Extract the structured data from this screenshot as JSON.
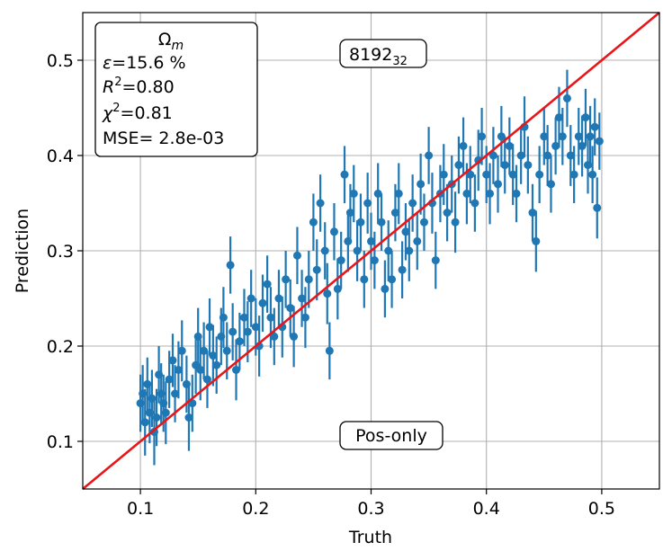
{
  "chart_data": {
    "type": "scatter",
    "title": "",
    "xlabel": "Truth",
    "ylabel": "Prediction",
    "xlim": [
      0.05,
      0.55
    ],
    "ylim": [
      0.05,
      0.55
    ],
    "grid": true,
    "x_ticks": [
      0.1,
      0.2,
      0.3,
      0.4,
      0.5
    ],
    "x_tick_labels": [
      "0.1",
      "0.2",
      "0.3",
      "0.4",
      "0.5"
    ],
    "y_ticks": [
      0.1,
      0.2,
      0.3,
      0.4,
      0.5
    ],
    "y_tick_labels": [
      "0.1",
      "0.2",
      "0.3",
      "0.4",
      "0.5"
    ],
    "series_color": "#1f77b4",
    "reference_line": {
      "name": "y = x",
      "color": "#e8161a",
      "from": [
        0.05,
        0.05
      ],
      "to": [
        0.55,
        0.55
      ]
    },
    "stats_box": {
      "parameter": "Ωm",
      "parameter_symbol": "Ω",
      "parameter_subscript": "m",
      "lines": [
        {
          "symbol": "ε",
          "sup": "",
          "text": "=15.6 %"
        },
        {
          "symbol": "R",
          "sup": "2",
          "text": "=0.80"
        },
        {
          "symbol": "χ",
          "sup": "2",
          "text": "=0.81"
        },
        {
          "symbol": "",
          "sup": "",
          "text": "MSE= 2.8e-03"
        }
      ]
    },
    "top_label": {
      "main": "8192",
      "subscript": "32"
    },
    "bottom_label": "Pos-only",
    "points": [
      {
        "x": 0.1,
        "y": 0.14,
        "err": 0.03
      },
      {
        "x": 0.102,
        "y": 0.15,
        "err": 0.03
      },
      {
        "x": 0.104,
        "y": 0.12,
        "err": 0.035
      },
      {
        "x": 0.106,
        "y": 0.16,
        "err": 0.028
      },
      {
        "x": 0.108,
        "y": 0.13,
        "err": 0.032
      },
      {
        "x": 0.11,
        "y": 0.145,
        "err": 0.03
      },
      {
        "x": 0.112,
        "y": 0.11,
        "err": 0.035
      },
      {
        "x": 0.114,
        "y": 0.125,
        "err": 0.03
      },
      {
        "x": 0.116,
        "y": 0.17,
        "err": 0.03
      },
      {
        "x": 0.118,
        "y": 0.15,
        "err": 0.032
      },
      {
        "x": 0.12,
        "y": 0.14,
        "err": 0.03
      },
      {
        "x": 0.122,
        "y": 0.13,
        "err": 0.033
      },
      {
        "x": 0.125,
        "y": 0.165,
        "err": 0.03
      },
      {
        "x": 0.128,
        "y": 0.185,
        "err": 0.028
      },
      {
        "x": 0.13,
        "y": 0.15,
        "err": 0.03
      },
      {
        "x": 0.133,
        "y": 0.175,
        "err": 0.03
      },
      {
        "x": 0.136,
        "y": 0.195,
        "err": 0.032
      },
      {
        "x": 0.14,
        "y": 0.16,
        "err": 0.03
      },
      {
        "x": 0.142,
        "y": 0.125,
        "err": 0.035
      },
      {
        "x": 0.145,
        "y": 0.14,
        "err": 0.03
      },
      {
        "x": 0.148,
        "y": 0.18,
        "err": 0.03
      },
      {
        "x": 0.15,
        "y": 0.21,
        "err": 0.03
      },
      {
        "x": 0.152,
        "y": 0.175,
        "err": 0.032
      },
      {
        "x": 0.155,
        "y": 0.195,
        "err": 0.03
      },
      {
        "x": 0.158,
        "y": 0.165,
        "err": 0.03
      },
      {
        "x": 0.16,
        "y": 0.22,
        "err": 0.03
      },
      {
        "x": 0.163,
        "y": 0.19,
        "err": 0.032
      },
      {
        "x": 0.166,
        "y": 0.18,
        "err": 0.03
      },
      {
        "x": 0.17,
        "y": 0.21,
        "err": 0.03
      },
      {
        "x": 0.172,
        "y": 0.23,
        "err": 0.032
      },
      {
        "x": 0.175,
        "y": 0.195,
        "err": 0.03
      },
      {
        "x": 0.178,
        "y": 0.285,
        "err": 0.03
      },
      {
        "x": 0.18,
        "y": 0.215,
        "err": 0.03
      },
      {
        "x": 0.183,
        "y": 0.175,
        "err": 0.032
      },
      {
        "x": 0.186,
        "y": 0.205,
        "err": 0.03
      },
      {
        "x": 0.19,
        "y": 0.23,
        "err": 0.03
      },
      {
        "x": 0.193,
        "y": 0.215,
        "err": 0.032
      },
      {
        "x": 0.196,
        "y": 0.25,
        "err": 0.03
      },
      {
        "x": 0.2,
        "y": 0.22,
        "err": 0.03
      },
      {
        "x": 0.203,
        "y": 0.2,
        "err": 0.032
      },
      {
        "x": 0.206,
        "y": 0.245,
        "err": 0.03
      },
      {
        "x": 0.21,
        "y": 0.265,
        "err": 0.03
      },
      {
        "x": 0.213,
        "y": 0.23,
        "err": 0.032
      },
      {
        "x": 0.216,
        "y": 0.21,
        "err": 0.03
      },
      {
        "x": 0.22,
        "y": 0.25,
        "err": 0.03
      },
      {
        "x": 0.223,
        "y": 0.22,
        "err": 0.032
      },
      {
        "x": 0.226,
        "y": 0.27,
        "err": 0.03
      },
      {
        "x": 0.23,
        "y": 0.24,
        "err": 0.03
      },
      {
        "x": 0.233,
        "y": 0.21,
        "err": 0.032
      },
      {
        "x": 0.236,
        "y": 0.295,
        "err": 0.03
      },
      {
        "x": 0.24,
        "y": 0.25,
        "err": 0.03
      },
      {
        "x": 0.243,
        "y": 0.23,
        "err": 0.032
      },
      {
        "x": 0.246,
        "y": 0.27,
        "err": 0.03
      },
      {
        "x": 0.25,
        "y": 0.33,
        "err": 0.03
      },
      {
        "x": 0.253,
        "y": 0.28,
        "err": 0.032
      },
      {
        "x": 0.256,
        "y": 0.35,
        "err": 0.03
      },
      {
        "x": 0.26,
        "y": 0.3,
        "err": 0.03
      },
      {
        "x": 0.262,
        "y": 0.255,
        "err": 0.032
      },
      {
        "x": 0.264,
        "y": 0.195,
        "err": 0.03
      },
      {
        "x": 0.268,
        "y": 0.32,
        "err": 0.03
      },
      {
        "x": 0.271,
        "y": 0.26,
        "err": 0.032
      },
      {
        "x": 0.274,
        "y": 0.29,
        "err": 0.03
      },
      {
        "x": 0.277,
        "y": 0.38,
        "err": 0.03
      },
      {
        "x": 0.28,
        "y": 0.31,
        "err": 0.032
      },
      {
        "x": 0.282,
        "y": 0.34,
        "err": 0.03
      },
      {
        "x": 0.285,
        "y": 0.36,
        "err": 0.03
      },
      {
        "x": 0.288,
        "y": 0.3,
        "err": 0.032
      },
      {
        "x": 0.291,
        "y": 0.33,
        "err": 0.03
      },
      {
        "x": 0.294,
        "y": 0.27,
        "err": 0.03
      },
      {
        "x": 0.297,
        "y": 0.35,
        "err": 0.032
      },
      {
        "x": 0.3,
        "y": 0.31,
        "err": 0.03
      },
      {
        "x": 0.303,
        "y": 0.29,
        "err": 0.03
      },
      {
        "x": 0.306,
        "y": 0.36,
        "err": 0.032
      },
      {
        "x": 0.309,
        "y": 0.33,
        "err": 0.03
      },
      {
        "x": 0.312,
        "y": 0.26,
        "err": 0.03
      },
      {
        "x": 0.315,
        "y": 0.3,
        "err": 0.032
      },
      {
        "x": 0.318,
        "y": 0.27,
        "err": 0.03
      },
      {
        "x": 0.321,
        "y": 0.34,
        "err": 0.03
      },
      {
        "x": 0.324,
        "y": 0.36,
        "err": 0.032
      },
      {
        "x": 0.327,
        "y": 0.28,
        "err": 0.03
      },
      {
        "x": 0.33,
        "y": 0.32,
        "err": 0.03
      },
      {
        "x": 0.333,
        "y": 0.3,
        "err": 0.032
      },
      {
        "x": 0.336,
        "y": 0.35,
        "err": 0.03
      },
      {
        "x": 0.34,
        "y": 0.31,
        "err": 0.03
      },
      {
        "x": 0.343,
        "y": 0.37,
        "err": 0.032
      },
      {
        "x": 0.346,
        "y": 0.33,
        "err": 0.03
      },
      {
        "x": 0.35,
        "y": 0.4,
        "err": 0.03
      },
      {
        "x": 0.353,
        "y": 0.35,
        "err": 0.032
      },
      {
        "x": 0.356,
        "y": 0.29,
        "err": 0.03
      },
      {
        "x": 0.36,
        "y": 0.36,
        "err": 0.03
      },
      {
        "x": 0.363,
        "y": 0.38,
        "err": 0.032
      },
      {
        "x": 0.366,
        "y": 0.34,
        "err": 0.03
      },
      {
        "x": 0.37,
        "y": 0.37,
        "err": 0.03
      },
      {
        "x": 0.373,
        "y": 0.33,
        "err": 0.032
      },
      {
        "x": 0.376,
        "y": 0.39,
        "err": 0.03
      },
      {
        "x": 0.38,
        "y": 0.41,
        "err": 0.03
      },
      {
        "x": 0.383,
        "y": 0.36,
        "err": 0.032
      },
      {
        "x": 0.386,
        "y": 0.38,
        "err": 0.03
      },
      {
        "x": 0.39,
        "y": 0.35,
        "err": 0.03
      },
      {
        "x": 0.393,
        "y": 0.395,
        "err": 0.032
      },
      {
        "x": 0.396,
        "y": 0.42,
        "err": 0.03
      },
      {
        "x": 0.4,
        "y": 0.38,
        "err": 0.03
      },
      {
        "x": 0.403,
        "y": 0.36,
        "err": 0.032
      },
      {
        "x": 0.406,
        "y": 0.4,
        "err": 0.03
      },
      {
        "x": 0.41,
        "y": 0.37,
        "err": 0.03
      },
      {
        "x": 0.413,
        "y": 0.42,
        "err": 0.032
      },
      {
        "x": 0.416,
        "y": 0.39,
        "err": 0.03
      },
      {
        "x": 0.42,
        "y": 0.41,
        "err": 0.03
      },
      {
        "x": 0.423,
        "y": 0.38,
        "err": 0.032
      },
      {
        "x": 0.426,
        "y": 0.36,
        "err": 0.03
      },
      {
        "x": 0.43,
        "y": 0.4,
        "err": 0.03
      },
      {
        "x": 0.433,
        "y": 0.43,
        "err": 0.032
      },
      {
        "x": 0.436,
        "y": 0.39,
        "err": 0.03
      },
      {
        "x": 0.44,
        "y": 0.34,
        "err": 0.03
      },
      {
        "x": 0.443,
        "y": 0.31,
        "err": 0.032
      },
      {
        "x": 0.446,
        "y": 0.38,
        "err": 0.03
      },
      {
        "x": 0.45,
        "y": 0.42,
        "err": 0.03
      },
      {
        "x": 0.453,
        "y": 0.4,
        "err": 0.032
      },
      {
        "x": 0.456,
        "y": 0.37,
        "err": 0.03
      },
      {
        "x": 0.46,
        "y": 0.41,
        "err": 0.03
      },
      {
        "x": 0.463,
        "y": 0.44,
        "err": 0.032
      },
      {
        "x": 0.466,
        "y": 0.42,
        "err": 0.03
      },
      {
        "x": 0.47,
        "y": 0.46,
        "err": 0.03
      },
      {
        "x": 0.473,
        "y": 0.4,
        "err": 0.032
      },
      {
        "x": 0.476,
        "y": 0.38,
        "err": 0.03
      },
      {
        "x": 0.48,
        "y": 0.42,
        "err": 0.03
      },
      {
        "x": 0.483,
        "y": 0.41,
        "err": 0.032
      },
      {
        "x": 0.486,
        "y": 0.44,
        "err": 0.03
      },
      {
        "x": 0.488,
        "y": 0.39,
        "err": 0.03
      },
      {
        "x": 0.49,
        "y": 0.42,
        "err": 0.032
      },
      {
        "x": 0.492,
        "y": 0.38,
        "err": 0.03
      },
      {
        "x": 0.494,
        "y": 0.43,
        "err": 0.03
      },
      {
        "x": 0.496,
        "y": 0.345,
        "err": 0.032
      },
      {
        "x": 0.498,
        "y": 0.415,
        "err": 0.03
      }
    ]
  }
}
